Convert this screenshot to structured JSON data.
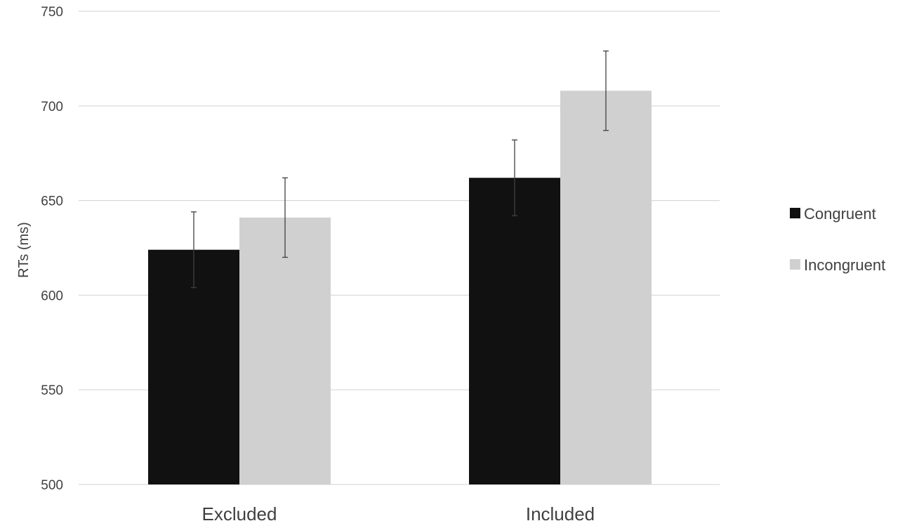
{
  "chart_data": {
    "type": "bar",
    "title": "",
    "xlabel": "",
    "ylabel": "RTs (ms)",
    "ylim": [
      500,
      750
    ],
    "yticks": [
      500,
      550,
      600,
      650,
      700,
      750
    ],
    "grid": true,
    "legend_position": "right",
    "categories": [
      "Excluded",
      "Included"
    ],
    "series": [
      {
        "name": "Congruent",
        "color": "#111111",
        "values": [
          624,
          662
        ],
        "error": [
          20,
          20
        ]
      },
      {
        "name": "Incongruent",
        "color": "#d0d0d0",
        "values": [
          641,
          708
        ],
        "error": [
          21,
          21
        ]
      }
    ]
  }
}
